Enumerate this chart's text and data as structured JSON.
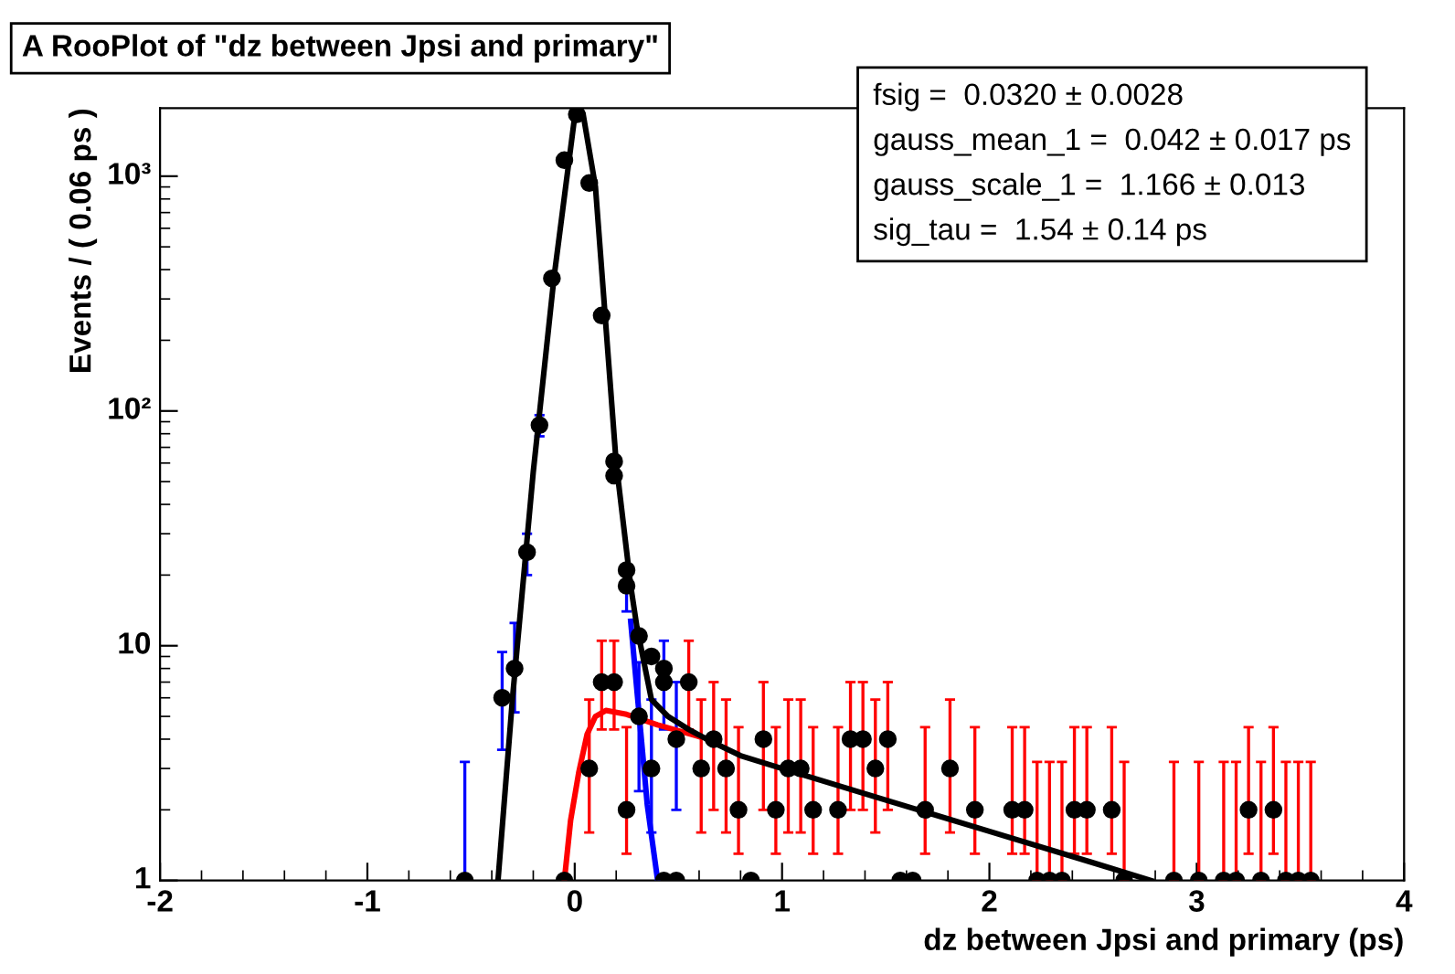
{
  "chart_data": {
    "type": "scatter",
    "title": "A RooPlot of \"dz between Jpsi and primary\"",
    "xlabel": "dz between Jpsi and primary (ps)",
    "ylabel": "Events / ( 0.06 ps )",
    "annotations": [
      "fsig =  0.0320 ± 0.0028",
      "gauss_mean_1 =  0.042 ± 0.017 ps",
      "gauss_scale_1 =  1.166 ± 0.013",
      "sig_tau =  1.54 ± 0.14 ps"
    ],
    "xlim": [
      -2,
      4
    ],
    "xticks": [
      -2,
      -1,
      0,
      1,
      2,
      3,
      4
    ],
    "ylim": [
      1,
      1950
    ],
    "yticks": [
      1,
      10,
      {
        "value": 100,
        "label": "10²"
      },
      {
        "value": 1000,
        "label": "10³"
      }
    ],
    "log": "y",
    "grid": false,
    "series": [
      {
        "marker": "circle",
        "color": "#0000ff",
        "colors": [
          "#000000",
          "#000000",
          "#000000",
          "#000000",
          "#000000",
          "#000000",
          "#000000",
          "#000000",
          "#000000",
          "#000000"
        ],
        "x": [
          -0.53,
          -0.35,
          -0.29,
          -0.23,
          -0.17,
          0.25,
          0.31,
          0.37,
          0.43,
          0.49
        ],
        "values": [
          1,
          6,
          8,
          25,
          87,
          18,
          5,
          3,
          7,
          4
        ],
        "errors": [
          [
            1,
            3.2
          ],
          [
            3.6,
            9.4
          ],
          [
            5.2,
            12.5
          ],
          [
            20,
            30
          ],
          [
            78,
            96
          ],
          [
            14,
            22
          ],
          [
            2.4,
            8.5
          ],
          [
            1.6,
            5.9
          ],
          [
            4.4,
            10.5
          ],
          [
            2.0,
            7.0
          ]
        ]
      },
      {
        "marker": "circle",
        "color": "#ff0000",
        "colors": [
          "#000000",
          "#000000",
          "#000000",
          "#000000",
          "#000000",
          "#000000",
          "#000000",
          "#000000",
          "#000000",
          "#000000",
          "#000000",
          "#000000",
          "#000000",
          "#000000",
          "#000000",
          "#000000",
          "#000000",
          "#000000",
          "#000000",
          "#000000",
          "#000000",
          "#000000",
          "#000000",
          "#000000",
          "#000000",
          "#000000",
          "#000000",
          "#000000",
          "#000000",
          "#000000",
          "#000000",
          "#000000",
          "#000000",
          "#000000",
          "#000000",
          "#000000",
          "#000000",
          "#000000",
          "#000000",
          "#000000",
          "#000000"
        ],
        "x": [
          0.07,
          0.13,
          0.19,
          0.25,
          0.55,
          0.61,
          0.67,
          0.73,
          0.79,
          0.91,
          0.97,
          1.03,
          1.09,
          1.15,
          1.27,
          1.33,
          1.39,
          1.45,
          1.51,
          1.69,
          1.81,
          1.93,
          2.11,
          2.17,
          2.23,
          2.29,
          2.35,
          2.41,
          2.47,
          2.59,
          2.65,
          2.89,
          3.01,
          3.13,
          3.19,
          3.25,
          3.31,
          3.37,
          3.43,
          3.49,
          3.55
        ],
        "values": [
          3,
          7,
          7,
          2,
          7,
          3,
          4,
          3,
          2,
          4,
          2,
          3,
          3,
          2,
          2,
          4,
          4,
          3,
          4,
          2,
          3,
          2,
          2,
          2,
          1,
          1,
          1,
          2,
          2,
          2,
          1,
          1,
          1,
          1,
          1,
          2,
          1,
          2,
          1,
          1,
          1
        ],
        "errors": [
          [
            1.6,
            5.9
          ],
          [
            4.4,
            10.5
          ],
          [
            4.4,
            10.5
          ],
          [
            1.3,
            4.5
          ],
          [
            4.4,
            10.5
          ],
          [
            1.6,
            5.9
          ],
          [
            2.0,
            7.0
          ],
          [
            1.6,
            5.9
          ],
          [
            1.3,
            4.5
          ],
          [
            2.0,
            7.0
          ],
          [
            1.3,
            4.5
          ],
          [
            1.6,
            5.9
          ],
          [
            1.6,
            5.9
          ],
          [
            1.3,
            4.5
          ],
          [
            1.3,
            4.5
          ],
          [
            2.0,
            7.0
          ],
          [
            2.0,
            7.0
          ],
          [
            1.6,
            5.9
          ],
          [
            2.0,
            7.0
          ],
          [
            1.3,
            4.5
          ],
          [
            1.6,
            5.9
          ],
          [
            1.3,
            4.5
          ],
          [
            1.3,
            4.5
          ],
          [
            1.3,
            4.5
          ],
          [
            1,
            3.2
          ],
          [
            1,
            3.2
          ],
          [
            1,
            3.2
          ],
          [
            1.3,
            4.5
          ],
          [
            1.3,
            4.5
          ],
          [
            1.3,
            4.5
          ],
          [
            1,
            3.2
          ],
          [
            1,
            3.2
          ],
          [
            1,
            3.2
          ],
          [
            1,
            3.2
          ],
          [
            1,
            3.2
          ],
          [
            1.3,
            4.5
          ],
          [
            1,
            3.2
          ],
          [
            1.3,
            4.5
          ],
          [
            1,
            3.2
          ],
          [
            1,
            3.2
          ],
          [
            1,
            3.2
          ]
        ]
      },
      {
        "type": "line",
        "marker": "none",
        "color": "#0000ff",
        "x": [
          0.27,
          0.35,
          0.4
        ],
        "values": [
          12.7,
          2.1,
          1
        ]
      },
      {
        "type": "line",
        "marker": "none",
        "color": "#ff0000",
        "x": [
          -0.05,
          -0.02,
          0.02,
          0.06,
          0.1,
          0.15,
          0.25,
          0.4,
          0.6
        ],
        "values": [
          1,
          1.8,
          2.9,
          4.2,
          5.0,
          5.3,
          5.1,
          4.6,
          4.1
        ]
      },
      {
        "type": "line",
        "marker": "none",
        "color": "#000000",
        "x": [
          -0.37,
          -0.3,
          -0.2,
          -0.1,
          0,
          0.04,
          0.1,
          0.2,
          0.27,
          0.3,
          0.37,
          0.45,
          0.55,
          0.66,
          0.8,
          1.0,
          1.5,
          2.0,
          2.5,
          2.78
        ],
        "values": [
          1,
          6,
          55,
          370,
          1800,
          1850,
          900,
          60,
          18,
          12,
          5.9,
          5.0,
          4.4,
          3.9,
          3.4,
          3.0,
          2.2,
          1.62,
          1.19,
          1.0
        ]
      },
      {
        "marker": "circle",
        "color": "#000000",
        "x": [
          -0.11,
          -0.05,
          -0.05,
          0.01,
          0.07,
          0.13,
          0.19,
          0.19,
          0.25,
          0.31,
          0.37,
          0.43,
          0.43,
          0.49,
          0.85,
          1.57,
          1.63
        ],
        "values": [
          367,
          1170,
          1,
          1835,
          935,
          255,
          61,
          53,
          21,
          11,
          9,
          8,
          1,
          1,
          1,
          1,
          1
        ]
      }
    ]
  }
}
